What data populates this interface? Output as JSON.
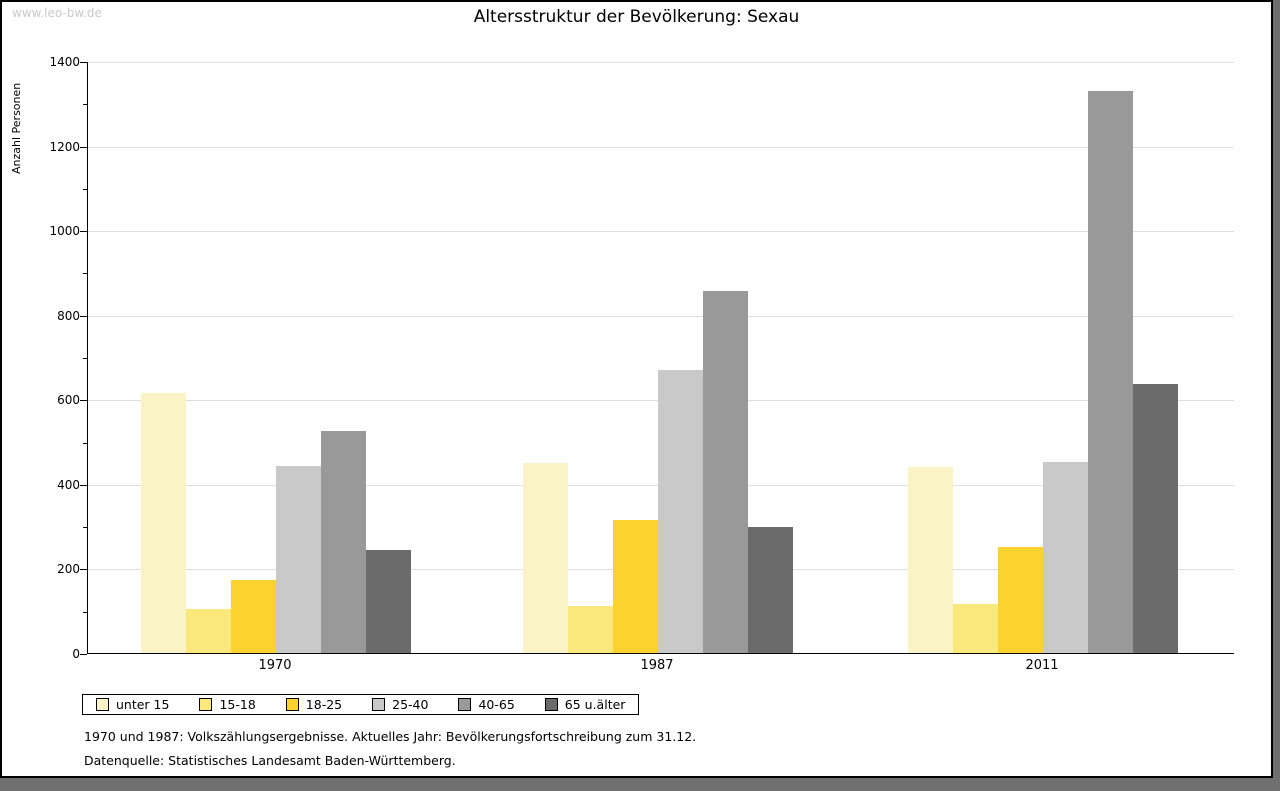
{
  "watermark": "www.leo-bw.de",
  "title": "Altersstruktur der Bevölkerung: Sexau",
  "footnotes": [
    "1970 und 1987: Volkszählungsergebnisse. Aktuelles Jahr: Bevölkerungsfortschreibung zum 31.12.",
    "Datenquelle: Statistisches Landesamt Baden-Württemberg."
  ],
  "colors": {
    "background": "#ffffff",
    "frame_border": "#000000",
    "shadow_band": "#6f6f6f",
    "gridline": "#dedede",
    "watermark": "#c9c9c9"
  },
  "chart_data": {
    "type": "bar",
    "title": "Altersstruktur der Bevölkerung: Sexau",
    "xlabel": "",
    "ylabel": "Anzahl Personen",
    "ylim": [
      0,
      1400
    ],
    "y_major_ticks": [
      0,
      200,
      400,
      600,
      800,
      1000,
      1200,
      1400
    ],
    "y_minor_tick_step": 100,
    "grid": true,
    "legend_position": "bottom-left",
    "categories": [
      "1970",
      "1987",
      "2011"
    ],
    "series": [
      {
        "name": "unter 15",
        "color": "#faf3c6",
        "values": [
          615,
          449,
          440
        ]
      },
      {
        "name": "15-18",
        "color": "#fae87d",
        "values": [
          104,
          111,
          117
        ]
      },
      {
        "name": "18-25",
        "color": "#fcd32e",
        "values": [
          172,
          315,
          250
        ]
      },
      {
        "name": "25-40",
        "color": "#c9c9c9",
        "values": [
          443,
          670,
          452
        ]
      },
      {
        "name": "40-65",
        "color": "#999999",
        "values": [
          525,
          855,
          1330
        ]
      },
      {
        "name": "65 u.älter",
        "color": "#6b6b6b",
        "values": [
          243,
          298,
          637
        ]
      }
    ]
  }
}
